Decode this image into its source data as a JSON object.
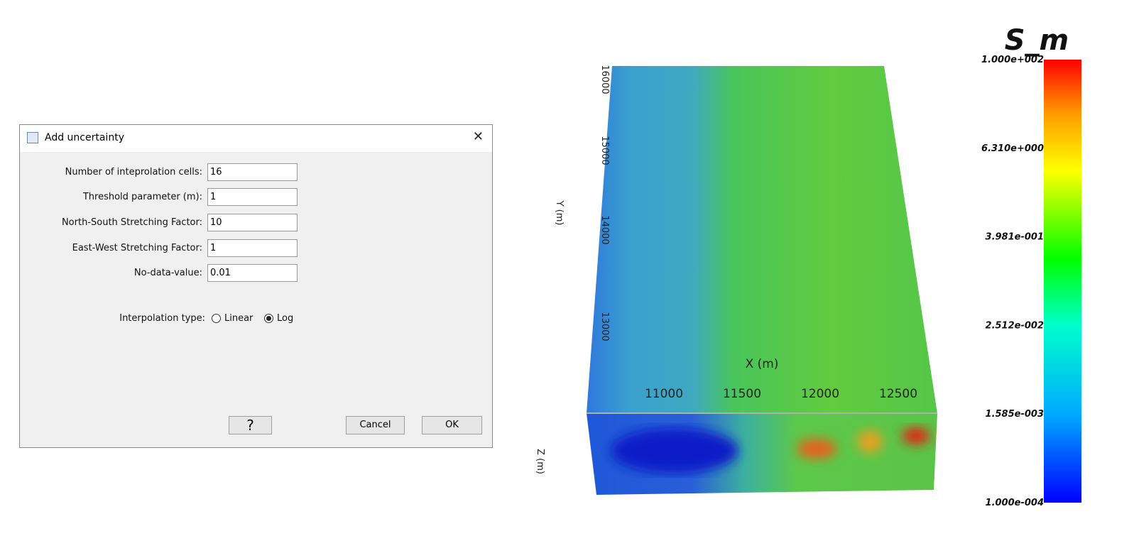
{
  "dialog": {
    "title": "Add uncertainty",
    "fields": [
      {
        "label": "Number of inteprolation cells:",
        "value": "16"
      },
      {
        "label": "Threshold parameter (m):",
        "value": "1"
      },
      {
        "label": "North-South Stretching Factor:",
        "value": "10"
      },
      {
        "label": "East-West Stretching Factor:",
        "value": "1"
      },
      {
        "label": "No-data-value:",
        "value": "0.01"
      }
    ],
    "interpolation": {
      "label": "Interpolation type:",
      "options": [
        "Linear",
        "Log"
      ],
      "selected": 1
    },
    "buttons": {
      "help": "?",
      "cancel": "Cancel",
      "ok": "OK"
    }
  },
  "view": {
    "x_axis": {
      "label": "X (m)",
      "ticks": [
        "11000",
        "11500",
        "12000",
        "12500"
      ]
    },
    "y_axis": {
      "label": "Y (m)",
      "ticks": [
        "16000",
        "15000",
        "14000",
        "13000"
      ]
    },
    "z_axis": {
      "label": "Z (m)"
    },
    "colorbar": {
      "title": "S_m",
      "labels": [
        "1.000e+002",
        "6.310e+000",
        "3.981e-001",
        "2.512e-002",
        "1.585e-003",
        "1.000e-004"
      ]
    }
  }
}
